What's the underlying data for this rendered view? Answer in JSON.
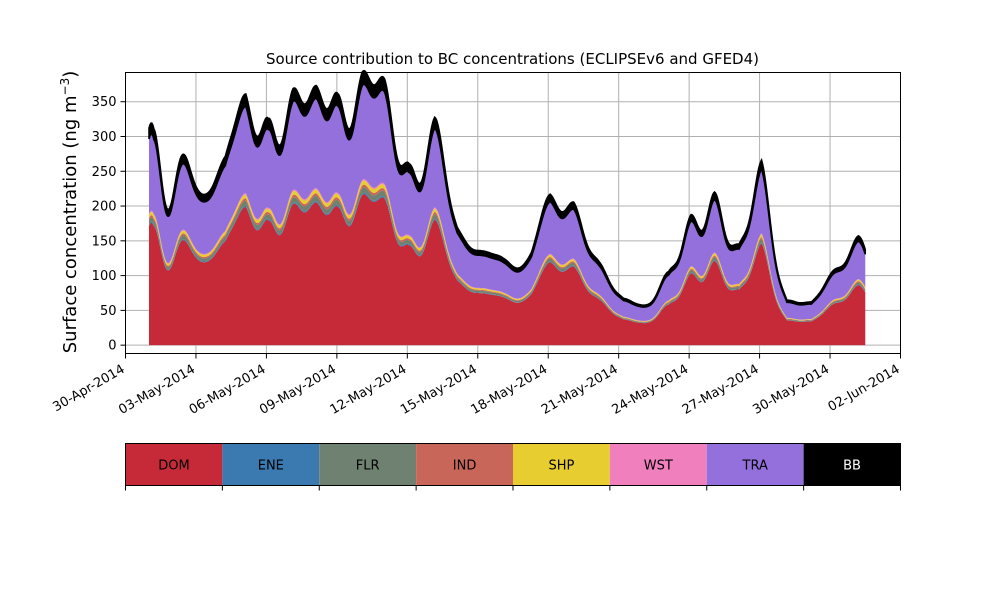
{
  "chart_data": {
    "type": "area",
    "title": "Source contribution to BC concentrations (ECLIPSEv6 and GFED4)",
    "xlabel": "",
    "ylabel": "Surface concentration (ng m",
    "ylabel_sup": "−3",
    "ylabel_close": ")",
    "x_start": "2014-05-01",
    "x_end": "2014-05-31",
    "xlim": [
      "2014-04-30",
      "2014-06-02"
    ],
    "x_ticks": [
      "2014-04-30",
      "2014-05-03",
      "2014-05-06",
      "2014-05-09",
      "2014-05-12",
      "2014-05-15",
      "2014-05-18",
      "2014-05-21",
      "2014-05-24",
      "2014-05-27",
      "2014-05-30",
      "2014-06-02"
    ],
    "x_tick_labels": [
      "30-Apr-2014",
      "03-May-2014",
      "06-May-2014",
      "09-May-2014",
      "12-May-2014",
      "15-May-2014",
      "18-May-2014",
      "21-May-2014",
      "24-May-2014",
      "27-May-2014",
      "30-May-2014",
      "02-Jun-2014"
    ],
    "ylim": [
      -12,
      392
    ],
    "y_ticks": [
      0,
      50,
      100,
      150,
      200,
      250,
      300,
      350
    ],
    "grid": true,
    "stacking": "cumulative",
    "peaks": [
      [
        "2014-05-01",
        100,
        160,
        14
      ],
      [
        "2014-05-01 05:00",
        75,
        255,
        12
      ],
      [
        "2014-05-02 09:00",
        70,
        250,
        14
      ],
      [
        "2014-05-03 06:00",
        65,
        180,
        16
      ],
      [
        "2014-05-04 06:00",
        65,
        240,
        16
      ],
      [
        "2014-05-05 03:00",
        140,
        325,
        14
      ],
      [
        "2014-05-06 02:00",
        110,
        305,
        12
      ],
      [
        "2014-05-07 03:00",
        145,
        355,
        14
      ],
      [
        "2014-05-08 03:00",
        150,
        355,
        14
      ],
      [
        "2014-05-09 01:00",
        130,
        335,
        12
      ],
      [
        "2014-05-10 02:00",
        150,
        375,
        14
      ],
      [
        "2014-05-11 01:00",
        140,
        365,
        14
      ],
      [
        "2014-05-12 02:00",
        100,
        245,
        12
      ],
      [
        "2014-05-13 04:00",
        110,
        315,
        14
      ],
      [
        "2014-05-14 03:00",
        60,
        150,
        16
      ],
      [
        "2014-05-15 04:00",
        50,
        118,
        16
      ],
      [
        "2014-05-16 02:00",
        45,
        110,
        16
      ],
      [
        "2014-05-17 07:00",
        50,
        115,
        18
      ],
      [
        "2014-05-18 02:00",
        85,
        190,
        14
      ],
      [
        "2014-05-19 02:00",
        85,
        195,
        14
      ],
      [
        "2014-05-20 04:00",
        45,
        115,
        16
      ],
      [
        "2014-05-21 05:00",
        15,
        55,
        14
      ],
      [
        "2014-05-22 02:00",
        15,
        50,
        16
      ],
      [
        "2014-05-23 03:00",
        20,
        100,
        14
      ],
      [
        "2014-05-24 02:00",
        70,
        180,
        12
      ],
      [
        "2014-05-25 02:00",
        85,
        215,
        12
      ],
      [
        "2014-05-26 03:00",
        60,
        140,
        14
      ],
      [
        "2014-05-27 02:00",
        120,
        258,
        12
      ],
      [
        "2014-05-28 04:00",
        20,
        60,
        16
      ],
      [
        "2014-05-29 05:00",
        15,
        55,
        16
      ],
      [
        "2014-05-30 04:00",
        45,
        100,
        14
      ],
      [
        "2014-05-31 05:00",
        75,
        155,
        14
      ]
    ],
    "series": [
      {
        "name": "DOM",
        "fraction": 0.55
      },
      {
        "name": "ENE",
        "fraction": 0.005
      },
      {
        "name": "FLR",
        "fraction": 0.02
      },
      {
        "name": "IND",
        "fraction": 0.01
      },
      {
        "name": "SHP",
        "fraction": 0.015
      },
      {
        "name": "WST",
        "fraction": 0.005
      },
      {
        "name": "TRA",
        "fraction": 0.345
      },
      {
        "name": "BB",
        "fraction": 0.05
      }
    ]
  },
  "legend": {
    "items": [
      {
        "name": "DOM",
        "color": "#c62a39",
        "text_color": "#000000"
      },
      {
        "name": "ENE",
        "color": "#3a7ab0",
        "text_color": "#000000"
      },
      {
        "name": "FLR",
        "color": "#6f8272",
        "text_color": "#000000"
      },
      {
        "name": "IND",
        "color": "#c9665a",
        "text_color": "#000000"
      },
      {
        "name": "SHP",
        "color": "#e7cd2f",
        "text_color": "#000000"
      },
      {
        "name": "WST",
        "color": "#f07fbe",
        "text_color": "#000000"
      },
      {
        "name": "TRA",
        "color": "#9370db",
        "text_color": "#000000"
      },
      {
        "name": "BB",
        "color": "#000000",
        "text_color": "#ffffff"
      }
    ]
  },
  "colors": {
    "grid": "#b0b0b0",
    "axis": "#000000",
    "background": "#ffffff"
  }
}
